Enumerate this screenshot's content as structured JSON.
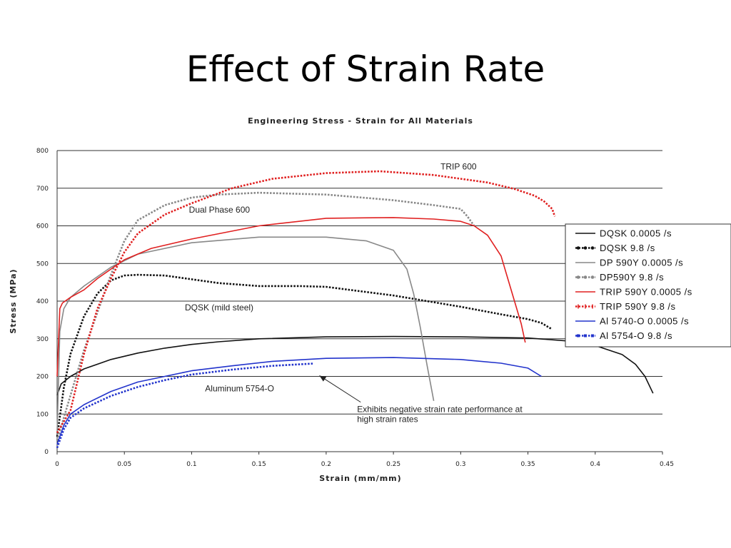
{
  "slide": {
    "title": "Effect of Strain Rate"
  },
  "chart_data": {
    "type": "line",
    "title": "Engineering Stress - Strain for All Materials",
    "xlabel": "Strain (mm/mm)",
    "ylabel": "Stress (MPa)",
    "xlim": [
      0,
      0.45
    ],
    "ylim": [
      0,
      800
    ],
    "grid": "horizontal",
    "legend_position": "right",
    "x_ticks": [
      "0",
      "0.05",
      "0.1",
      "0.15",
      "0.2",
      "0.25",
      "0.3",
      "0.35",
      "0.4",
      "0.45"
    ],
    "y_ticks": [
      "0",
      "100",
      "200",
      "300",
      "400",
      "500",
      "600",
      "700",
      "800"
    ],
    "annotations": [
      {
        "text": "TRIP 600",
        "x": 0.285,
        "y": 750,
        "color": "#e02020"
      },
      {
        "text": "Dual Phase 600",
        "x": 0.098,
        "y": 635,
        "color": "#888888"
      },
      {
        "text": "DQSK (mild steel)",
        "x": 0.095,
        "y": 375,
        "color": "#222222"
      },
      {
        "text": "Aluminum 5754-O",
        "x": 0.11,
        "y": 160,
        "color": "#222222"
      },
      {
        "text": "Exhibits negative strain rate performance at",
        "text2": "high strain rates",
        "x": 0.223,
        "y": 105,
        "arrow_to": [
          0.195,
          202
        ],
        "color": "#222222"
      }
    ],
    "series": [
      {
        "name": "DQSK 0.0005 /s",
        "color": "#111111",
        "style": "solid",
        "marker": "none",
        "x": [
          0,
          0.003,
          0.01,
          0.02,
          0.04,
          0.06,
          0.08,
          0.1,
          0.12,
          0.15,
          0.2,
          0.25,
          0.3,
          0.35,
          0.38,
          0.4,
          0.42,
          0.43,
          0.437,
          0.443
        ],
        "y": [
          150,
          180,
          200,
          220,
          245,
          262,
          275,
          285,
          292,
          300,
          305,
          306,
          305,
          302,
          294,
          282,
          258,
          232,
          200,
          155
        ]
      },
      {
        "name": "DQSK 9.8 /s",
        "color": "#111111",
        "style": "dotted",
        "marker": "dot",
        "x": [
          0,
          0.005,
          0.01,
          0.02,
          0.03,
          0.04,
          0.05,
          0.06,
          0.08,
          0.1,
          0.12,
          0.15,
          0.18,
          0.2,
          0.25,
          0.3,
          0.33,
          0.35,
          0.36,
          0.368
        ],
        "y": [
          40,
          170,
          260,
          360,
          420,
          455,
          468,
          470,
          468,
          458,
          448,
          440,
          440,
          438,
          415,
          385,
          365,
          352,
          342,
          325
        ]
      },
      {
        "name": "DP 590Y 0.0005 /s",
        "color": "#888888",
        "style": "solid",
        "marker": "none",
        "x": [
          0,
          0.002,
          0.005,
          0.01,
          0.02,
          0.04,
          0.06,
          0.1,
          0.15,
          0.2,
          0.23,
          0.25,
          0.26,
          0.265,
          0.27,
          0.275,
          0.28
        ],
        "y": [
          50,
          320,
          380,
          410,
          440,
          490,
          525,
          555,
          570,
          570,
          560,
          535,
          485,
          420,
          330,
          230,
          135
        ]
      },
      {
        "name": "DP590Y 9.8 /s",
        "color": "#888888",
        "style": "dotted",
        "marker": "dot",
        "x": [
          0,
          0.01,
          0.02,
          0.03,
          0.04,
          0.05,
          0.06,
          0.08,
          0.1,
          0.12,
          0.15,
          0.2,
          0.25,
          0.28,
          0.3,
          0.305,
          0.31
        ],
        "y": [
          30,
          150,
          270,
          370,
          470,
          560,
          615,
          655,
          675,
          683,
          688,
          683,
          668,
          655,
          645,
          625,
          600
        ]
      },
      {
        "name": "TRIP 590Y 0.0005 /s",
        "color": "#e02020",
        "style": "solid",
        "marker": "none",
        "x": [
          0,
          0.002,
          0.004,
          0.01,
          0.02,
          0.03,
          0.05,
          0.07,
          0.1,
          0.15,
          0.2,
          0.25,
          0.28,
          0.3,
          0.31,
          0.32,
          0.33,
          0.335,
          0.34,
          0.345,
          0.348
        ],
        "y": [
          200,
          380,
          395,
          410,
          430,
          460,
          510,
          540,
          565,
          600,
          620,
          622,
          618,
          612,
          600,
          575,
          520,
          460,
          400,
          340,
          290
        ]
      },
      {
        "name": "TRIP 590Y 9.8 /s",
        "color": "#e02020",
        "style": "dotted",
        "marker": "tick",
        "x": [
          0,
          0.005,
          0.01,
          0.02,
          0.03,
          0.04,
          0.05,
          0.06,
          0.08,
          0.1,
          0.13,
          0.16,
          0.2,
          0.24,
          0.28,
          0.32,
          0.34,
          0.355,
          0.362,
          0.368,
          0.37
        ],
        "y": [
          50,
          80,
          110,
          260,
          380,
          460,
          530,
          580,
          630,
          660,
          700,
          725,
          740,
          745,
          735,
          715,
          698,
          680,
          665,
          645,
          625
        ]
      },
      {
        "name": "Al 5740-O 0.0005 /s",
        "color": "#2233cc",
        "style": "solid",
        "marker": "none",
        "x": [
          0,
          0.005,
          0.01,
          0.02,
          0.04,
          0.06,
          0.08,
          0.1,
          0.13,
          0.16,
          0.2,
          0.25,
          0.3,
          0.33,
          0.35,
          0.36
        ],
        "y": [
          20,
          70,
          100,
          125,
          160,
          185,
          200,
          215,
          228,
          240,
          248,
          250,
          245,
          235,
          222,
          200
        ]
      },
      {
        "name": "Al 5754-O 9.8 /s",
        "color": "#2233cc",
        "style": "dotted",
        "marker": "square",
        "x": [
          0,
          0.005,
          0.01,
          0.02,
          0.04,
          0.06,
          0.08,
          0.1,
          0.13,
          0.16,
          0.19
        ],
        "y": [
          10,
          60,
          90,
          115,
          148,
          172,
          190,
          205,
          218,
          228,
          234
        ]
      }
    ]
  }
}
